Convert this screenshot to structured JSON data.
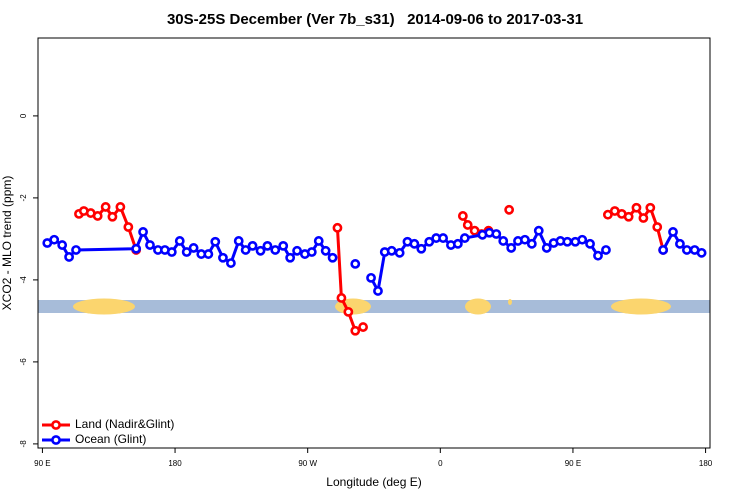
{
  "chart_data": {
    "type": "line",
    "title": "30S-25S December (Ver 7b_s31)   2014-09-06 to 2017-03-31",
    "xlabel": "Longitude (deg E)",
    "ylabel": "XCO2 - MLO trend (ppm)",
    "xlim": [
      87,
      543
    ],
    "ylim": [
      -8.1,
      1.9
    ],
    "xticks": [
      {
        "value": 90,
        "label": "90 E"
      },
      {
        "value": 180,
        "label": "180"
      },
      {
        "value": 270,
        "label": "90 W"
      },
      {
        "value": 360,
        "label": "0"
      },
      {
        "value": 450,
        "label": "90 E"
      },
      {
        "value": 540,
        "label": "180"
      }
    ],
    "yticks": [
      -8,
      -6,
      -4,
      -2,
      0
    ],
    "legend": "bottom-left",
    "series": [
      {
        "name": "Land (Nadir&Glint)",
        "color": "#ff0000",
        "x": [
          114.8,
          118.1,
          122.8,
          127.5,
          132.9,
          137.5,
          142.9,
          148.3,
          153.6,
          null,
          290.2,
          292.9,
          297.6,
          302.3,
          307.6,
          null,
          375.3,
          378.6,
          383.3,
          388.0,
          392.7,
          null,
          406.7,
          null,
          473.7,
          478.4,
          483.1,
          487.8,
          493.1,
          497.8,
          502.5,
          507.2,
          511.2
        ],
        "values": [
          -2.39,
          -2.32,
          -2.37,
          -2.44,
          -2.22,
          -2.46,
          -2.22,
          -2.71,
          -3.27,
          null,
          -2.73,
          -4.44,
          -4.78,
          -5.24,
          -5.15,
          null,
          -2.44,
          -2.66,
          -2.8,
          -2.88,
          -2.8,
          null,
          -2.29,
          null,
          -2.41,
          -2.32,
          -2.39,
          -2.46,
          -2.24,
          -2.49,
          -2.24,
          -2.71,
          -3.27
        ]
      },
      {
        "name": "Ocean (Glint)",
        "color": "#0000ff",
        "x": [
          93.3,
          98.0,
          103.4,
          108.1,
          112.8,
          153.6,
          158.3,
          163.0,
          168.4,
          173.1,
          177.8,
          183.2,
          187.9,
          192.6,
          197.8,
          202.6,
          207.3,
          212.5,
          217.9,
          223.2,
          227.9,
          232.6,
          238.0,
          242.7,
          248.0,
          253.4,
          258.1,
          262.8,
          268.1,
          272.8,
          277.5,
          282.2,
          286.9,
          null,
          302.3,
          null,
          313.0,
          317.7,
          322.3,
          327.0,
          332.4,
          337.7,
          342.4,
          347.1,
          352.5,
          357.2,
          361.9,
          367.2,
          371.9,
          376.6,
          388.6,
          393.3,
          398.0,
          402.7,
          408.1,
          412.7,
          417.4,
          422.1,
          426.8,
          432.2,
          436.9,
          441.5,
          446.2,
          451.6,
          456.3,
          461.6,
          467.0,
          472.4,
          null,
          511.2,
          517.9,
          522.6,
          527.3,
          532.6,
          537.3
        ],
        "values": [
          -3.1,
          -3.02,
          -3.15,
          -3.44,
          -3.27,
          -3.24,
          -2.83,
          -3.15,
          -3.27,
          -3.27,
          -3.32,
          -3.05,
          -3.32,
          -3.22,
          -3.37,
          -3.37,
          -3.07,
          -3.46,
          -3.59,
          -3.05,
          -3.27,
          -3.17,
          -3.29,
          -3.17,
          -3.27,
          -3.17,
          -3.46,
          -3.29,
          -3.37,
          -3.32,
          -3.05,
          -3.29,
          -3.46,
          null,
          -3.61,
          null,
          -3.95,
          -4.27,
          -3.32,
          -3.29,
          -3.34,
          -3.07,
          -3.12,
          -3.24,
          -3.07,
          -2.98,
          -2.98,
          -3.15,
          -3.12,
          -2.98,
          -2.9,
          -2.85,
          -2.88,
          -3.05,
          -3.22,
          -3.05,
          -3.02,
          -3.12,
          -2.8,
          -3.22,
          -3.1,
          -3.05,
          -3.07,
          -3.07,
          -3.02,
          -3.12,
          -3.41,
          -3.27,
          null,
          -3.27,
          -2.83,
          -3.12,
          -3.27,
          -3.27,
          -3.34
        ]
      }
    ]
  }
}
